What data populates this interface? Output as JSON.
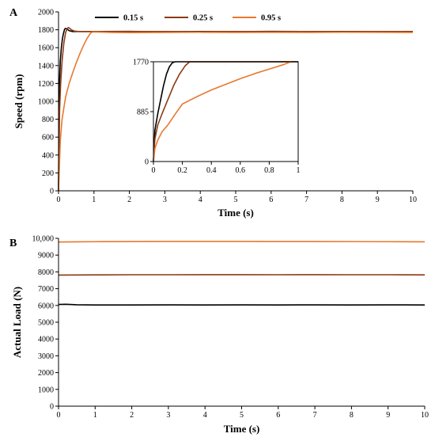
{
  "chart_data": [
    {
      "panel": "A",
      "type": "line",
      "xlabel": "Time (s)",
      "ylabel": "Speed (rpm)",
      "xlim": [
        0,
        10
      ],
      "ylim": [
        0,
        2000
      ],
      "xticks": [
        0,
        1,
        2,
        3,
        4,
        5,
        6,
        7,
        8,
        9,
        10
      ],
      "yticks": [
        0,
        200,
        400,
        600,
        800,
        1000,
        1200,
        1400,
        1600,
        1800,
        2000
      ],
      "legend_position": "top-right",
      "series": [
        {
          "name": "0.15 s",
          "color": "#000000",
          "x": [
            0,
            0.02,
            0.05,
            0.08,
            0.11,
            0.14,
            0.17,
            0.2,
            0.25,
            0.3,
            0.4,
            0.6,
            1,
            2,
            3,
            4,
            5,
            6,
            7,
            8,
            9,
            10
          ],
          "values": [
            0,
            1150,
            1450,
            1600,
            1700,
            1760,
            1805,
            1815,
            1805,
            1790,
            1780,
            1780,
            1780,
            1782,
            1778,
            1781,
            1779,
            1782,
            1780,
            1781,
            1779,
            1780
          ]
        },
        {
          "name": "0.25 s",
          "color": "#8B3A12",
          "x": [
            0,
            0.03,
            0.06,
            0.1,
            0.15,
            0.2,
            0.25,
            0.28,
            0.32,
            0.36,
            0.45,
            0.6,
            1,
            2,
            3,
            4,
            5,
            6,
            7,
            8,
            9,
            10
          ],
          "values": [
            0,
            900,
            1200,
            1450,
            1650,
            1770,
            1815,
            1825,
            1815,
            1800,
            1785,
            1780,
            1780,
            1779,
            1781,
            1778,
            1780,
            1779,
            1781,
            1779,
            1780,
            1779
          ]
        },
        {
          "name": "0.95 s",
          "color": "#E8782E",
          "x": [
            0,
            0.05,
            0.1,
            0.2,
            0.3,
            0.4,
            0.5,
            0.6,
            0.7,
            0.8,
            0.9,
            0.95,
            1.1,
            1.5,
            2,
            3,
            4,
            5,
            6,
            7,
            8,
            9,
            10
          ],
          "values": [
            0,
            560,
            800,
            1050,
            1200,
            1320,
            1430,
            1530,
            1620,
            1700,
            1760,
            1775,
            1775,
            1770,
            1768,
            1770,
            1772,
            1770,
            1771,
            1770,
            1772,
            1771,
            1770
          ]
        }
      ],
      "inset": {
        "xlim": [
          0,
          1
        ],
        "ylim": [
          0,
          1770
        ],
        "xticks": [
          0,
          0.2,
          0.4,
          0.6,
          0.8,
          1
        ],
        "xtick_labels": [
          "0",
          "0.2",
          "0.4",
          "0.6",
          "0.8",
          "1"
        ],
        "yticks": [
          0,
          885,
          1770
        ],
        "series": [
          {
            "name": "0.15 s",
            "color": "#000000",
            "x": [
              0,
              0.01,
              0.03,
              0.05,
              0.07,
              0.09,
              0.11,
              0.13,
              0.15,
              1
            ],
            "values": [
              0,
              550,
              850,
              1100,
              1350,
              1550,
              1680,
              1750,
              1770,
              1770
            ]
          },
          {
            "name": "0.25 s",
            "color": "#8B3A12",
            "x": [
              0,
              0.01,
              0.03,
              0.06,
              0.1,
              0.14,
              0.18,
              0.22,
              0.25,
              1
            ],
            "values": [
              0,
              400,
              650,
              850,
              1100,
              1350,
              1550,
              1700,
              1770,
              1770
            ]
          },
          {
            "name": "0.95 s",
            "color": "#E8782E",
            "x": [
              0,
              0.01,
              0.03,
              0.06,
              0.1,
              0.15,
              0.2,
              0.3,
              0.4,
              0.5,
              0.6,
              0.7,
              0.8,
              0.9,
              0.95
            ],
            "values": [
              0,
              230,
              380,
              530,
              650,
              840,
              1020,
              1150,
              1270,
              1370,
              1470,
              1560,
              1640,
              1720,
              1770
            ]
          }
        ]
      }
    },
    {
      "panel": "B",
      "type": "line",
      "xlabel": "Time (s)",
      "ylabel": "Actual Load (N)",
      "xlim": [
        0,
        10
      ],
      "ylim": [
        0,
        10000
      ],
      "xticks": [
        0,
        1,
        2,
        3,
        4,
        5,
        6,
        7,
        8,
        9,
        10
      ],
      "yticks": [
        0,
        1000,
        2000,
        3000,
        4000,
        5000,
        6000,
        7000,
        8000,
        9000,
        10000
      ],
      "ytick_labels": [
        "0",
        "1000",
        "2000",
        "3000",
        "4000",
        "5000",
        "6000",
        "7000",
        "8000",
        "9000",
        "10,000"
      ],
      "series": [
        {
          "color": "#000000",
          "x": [
            0,
            0.2,
            0.5,
            1,
            2,
            3,
            4,
            5,
            6,
            7,
            8,
            9,
            10
          ],
          "values": [
            6060,
            6070,
            6040,
            6030,
            6030,
            6035,
            6030,
            6035,
            6030,
            6035,
            6030,
            6035,
            6030
          ]
        },
        {
          "color": "#8B3A12",
          "x": [
            0,
            0.5,
            1,
            2,
            3,
            4,
            5,
            6,
            7,
            8,
            9,
            10
          ],
          "values": [
            7810,
            7815,
            7820,
            7830,
            7830,
            7835,
            7835,
            7830,
            7835,
            7830,
            7830,
            7820
          ]
        },
        {
          "color": "#E8782E",
          "x": [
            0,
            0.5,
            1,
            2,
            3,
            4,
            5,
            6,
            7,
            8,
            9,
            10
          ],
          "values": [
            9780,
            9790,
            9800,
            9810,
            9815,
            9815,
            9815,
            9810,
            9810,
            9805,
            9800,
            9790
          ]
        }
      ]
    }
  ]
}
